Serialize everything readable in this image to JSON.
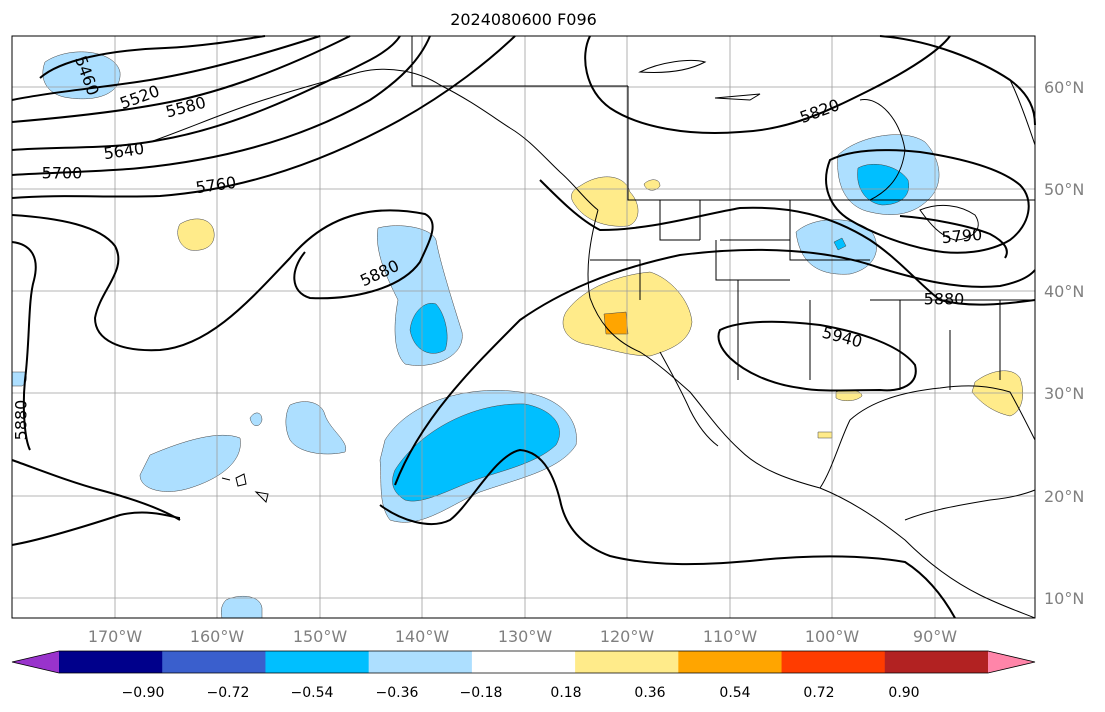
{
  "title": "2024080600 F096",
  "map": {
    "lat_labels": [
      "60°N",
      "50°N",
      "40°N",
      "30°N",
      "20°N",
      "10°N"
    ],
    "lon_labels": [
      "170°W",
      "160°W",
      "150°W",
      "140°W",
      "130°W",
      "120°W",
      "110°W",
      "100°W",
      "90°W"
    ],
    "contour_labels": [
      "5460",
      "5520",
      "5580",
      "5640",
      "5700",
      "5760",
      "5820",
      "5880",
      "5880",
      "5880",
      "5940",
      "5790"
    ],
    "contour_color": "#000000",
    "coastline_color": "#000000",
    "grid_color": "#9e9e9e"
  },
  "colorbar": {
    "tick_labels": [
      "−0.90",
      "−0.72",
      "−0.54",
      "−0.36",
      "−0.18",
      "0.18",
      "0.36",
      "0.54",
      "0.72",
      "0.90"
    ],
    "colors": [
      "#9933cc",
      "#00008b",
      "#3a5fcd",
      "#00bfff",
      "#addfff",
      "#ffffff",
      "#ffeb8a",
      "#ffa500",
      "#ff3c00",
      "#b22222",
      "#ff85a9"
    ]
  }
}
